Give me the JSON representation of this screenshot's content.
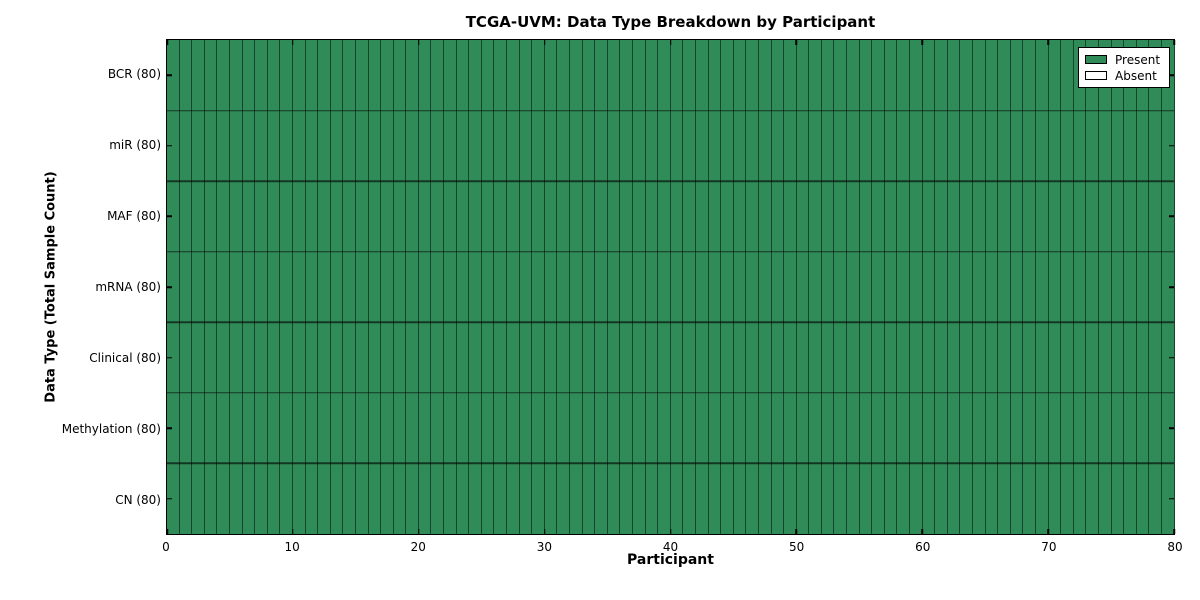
{
  "title": "TCGA-UVM: Data Type Breakdown by Participant",
  "chart_data": {
    "type": "heatmap",
    "title": "TCGA-UVM: Data Type Breakdown by Participant",
    "xlabel": "Participant",
    "ylabel": "Data Type (Total Sample Count)",
    "x_range": [
      0,
      80
    ],
    "x_ticks": [
      0,
      10,
      20,
      30,
      40,
      50,
      60,
      70,
      80
    ],
    "n_participants": 80,
    "rows": [
      {
        "label": "BCR (80)",
        "data_type": "BCR",
        "total_samples": 80,
        "present_count": 80,
        "absent_count": 0
      },
      {
        "label": "miR (80)",
        "data_type": "miR",
        "total_samples": 80,
        "present_count": 80,
        "absent_count": 0
      },
      {
        "label": "MAF (80)",
        "data_type": "MAF",
        "total_samples": 80,
        "present_count": 80,
        "absent_count": 0
      },
      {
        "label": "mRNA (80)",
        "data_type": "mRNA",
        "total_samples": 80,
        "present_count": 80,
        "absent_count": 0
      },
      {
        "label": "Clinical (80)",
        "data_type": "Clinical",
        "total_samples": 80,
        "present_count": 80,
        "absent_count": 0
      },
      {
        "label": "Methylation (80)",
        "data_type": "Methylation",
        "total_samples": 80,
        "present_count": 80,
        "absent_count": 0
      },
      {
        "label": "CN (80)",
        "data_type": "CN",
        "total_samples": 80,
        "present_count": 80,
        "absent_count": 0
      }
    ],
    "cell_states": "all_present",
    "legend": {
      "position": "upper right",
      "entries": [
        {
          "label": "Present",
          "color": "#2f8b57"
        },
        {
          "label": "Absent",
          "color": "#ffffff"
        }
      ]
    },
    "colors": {
      "present": "#2f8b57",
      "absent": "#ffffff",
      "cell_border": "rgba(0,0,0,0.5)",
      "row_separator": "rgba(0,0,0,0.6)",
      "spine": "#000000",
      "background": "#ffffff"
    },
    "grid": true
  }
}
